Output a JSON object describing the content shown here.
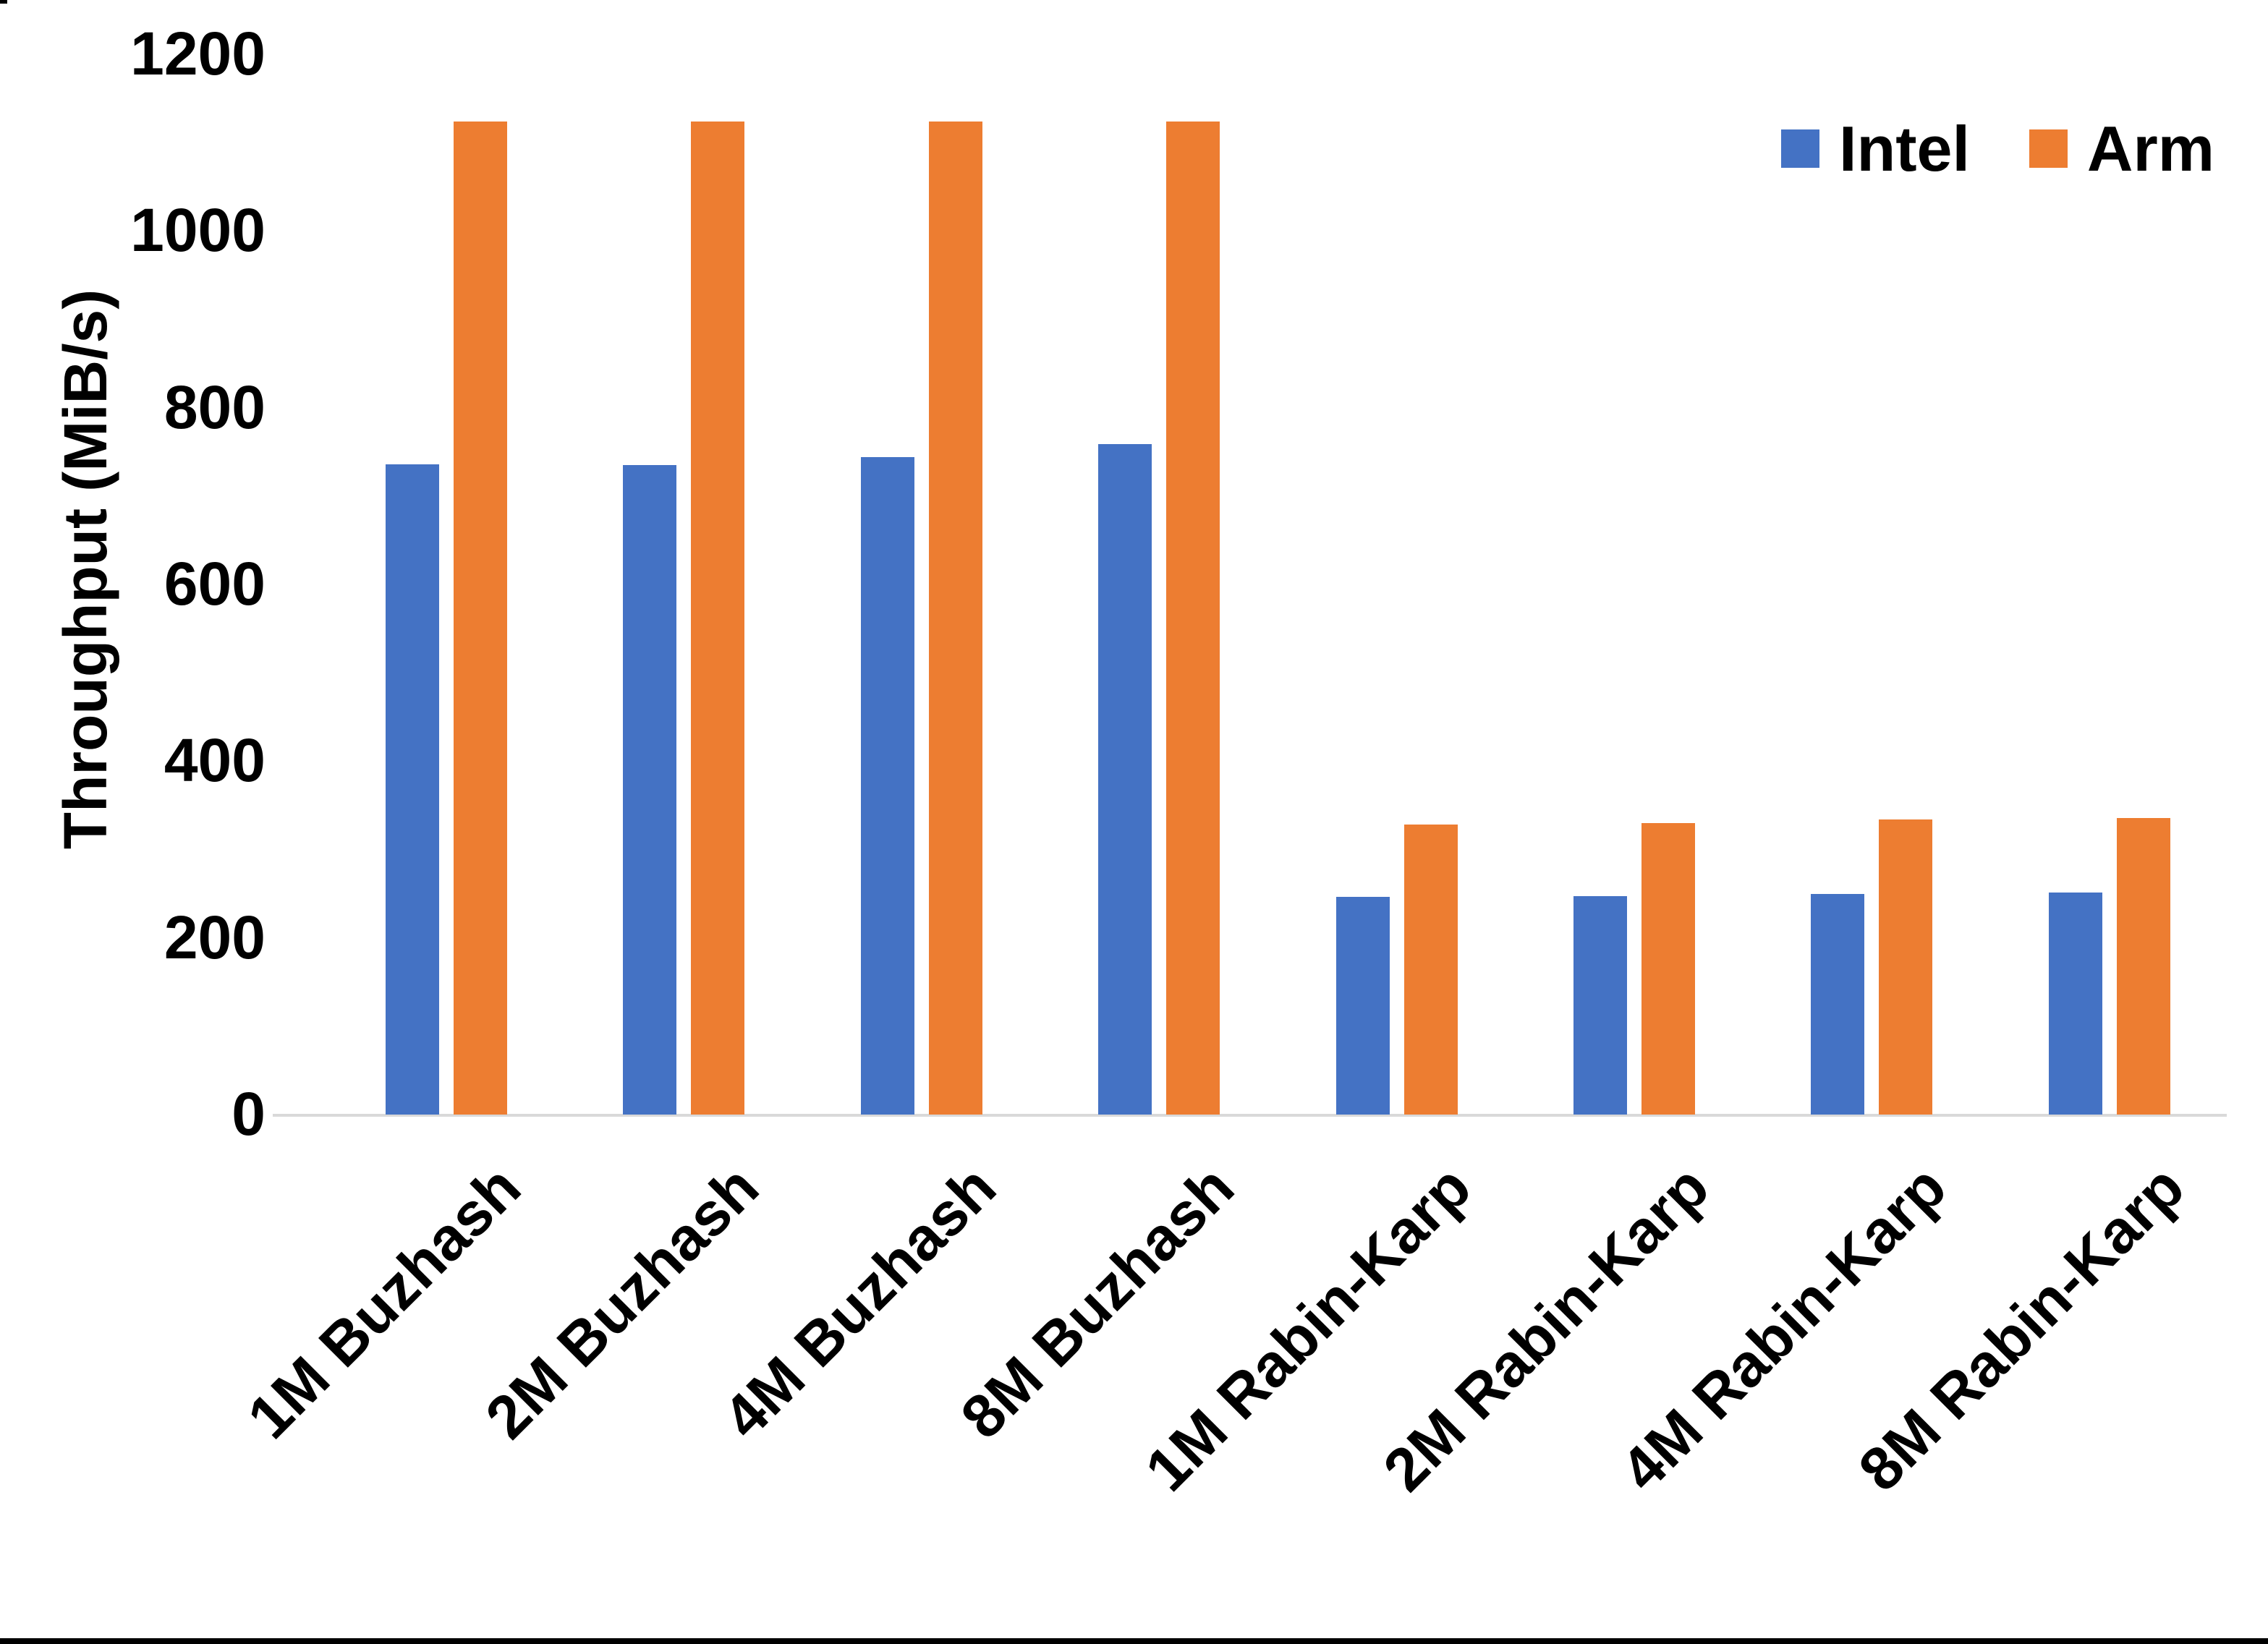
{
  "page": {
    "background_color": "#FFFFFF",
    "edge_color": "#000000"
  },
  "chart_data": {
    "type": "bar",
    "title": "",
    "xlabel": "",
    "ylabel": "Throughput (MiB/s)",
    "ylim": [
      0,
      1200
    ],
    "yticks": [
      0,
      200,
      400,
      600,
      800,
      1000,
      1200
    ],
    "grid": false,
    "legend_position": "top-right",
    "axis_line_color": "#D9D9D9",
    "text_color": "#000000",
    "categories": [
      "1M Buzhash",
      "2M Buzhash",
      "4M Buzhash",
      "8M Buzhash",
      "1M Rabin-Karp",
      "2M Rabin-Karp",
      "4M Rabin-Karp",
      "8M Rabin-Karp"
    ],
    "series": [
      {
        "name": "Intel",
        "color": "#4472C4",
        "values": [
          736,
          735,
          744,
          759,
          246,
          247,
          250,
          251
        ]
      },
      {
        "name": "Arm",
        "color": "#ED7D31",
        "values": [
          1124,
          1124,
          1124,
          1124,
          328,
          330,
          334,
          336
        ]
      }
    ]
  }
}
